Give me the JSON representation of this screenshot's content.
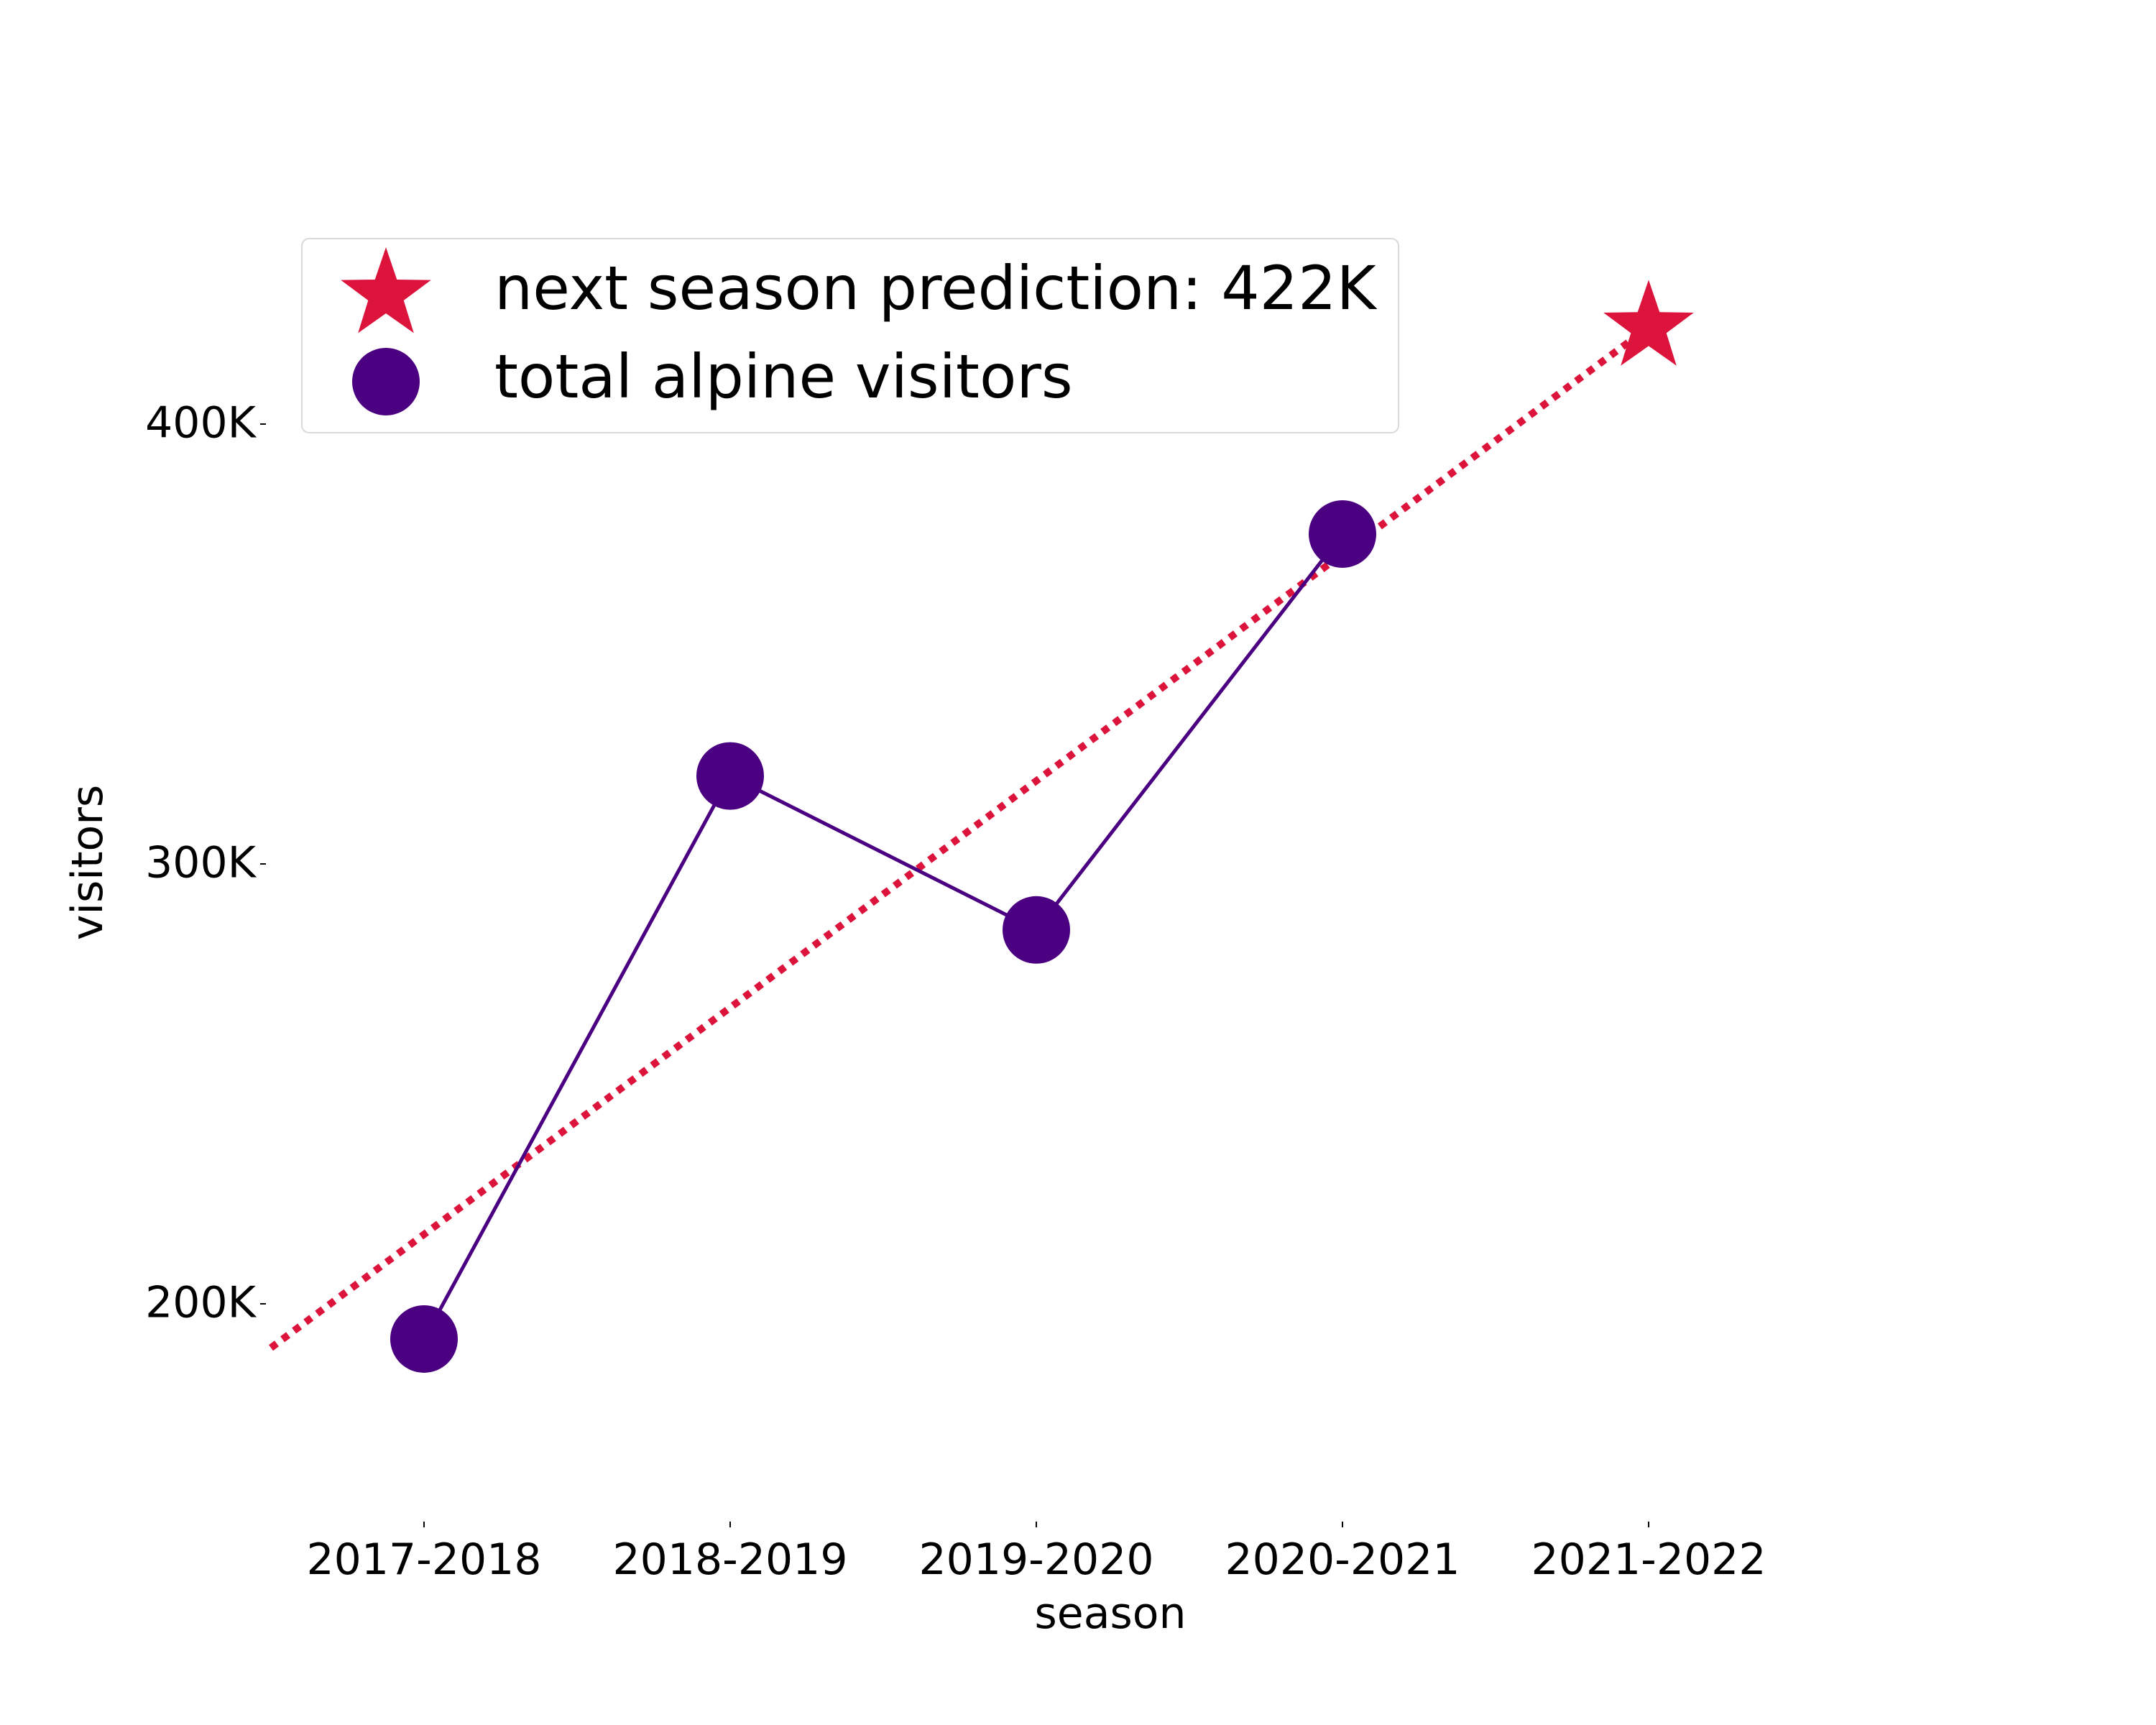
{
  "chart_data": {
    "type": "line",
    "title": "",
    "xlabel": "season",
    "ylabel": "visitors",
    "categories": [
      "2017-2018",
      "2018-2019",
      "2019-2020",
      "2020-2021",
      "2021-2022"
    ],
    "yticks": [
      {
        "value": 200000,
        "label": "200K"
      },
      {
        "value": 300000,
        "label": "300K"
      },
      {
        "value": 400000,
        "label": "400K"
      }
    ],
    "ylim": [
      160000,
      450000
    ],
    "grid": false,
    "legend_position": "top-left",
    "series": [
      {
        "name": "total alpine visitors",
        "kind": "line-with-markers",
        "marker": "circle",
        "color": "#4b0082",
        "x": [
          "2017-2018",
          "2018-2019",
          "2019-2020",
          "2020-2021"
        ],
        "values": [
          192000,
          320000,
          285000,
          375000
        ]
      }
    ],
    "trend_line": {
      "style": "dotted",
      "color": "#dc143c",
      "start": {
        "x": -0.5,
        "y": 190000
      },
      "end": {
        "x": 4,
        "y": 422000
      }
    },
    "prediction": {
      "name": "next season prediction: 422K",
      "marker": "star",
      "color": "#dc143c",
      "x": "2021-2022",
      "value": 422000
    }
  }
}
